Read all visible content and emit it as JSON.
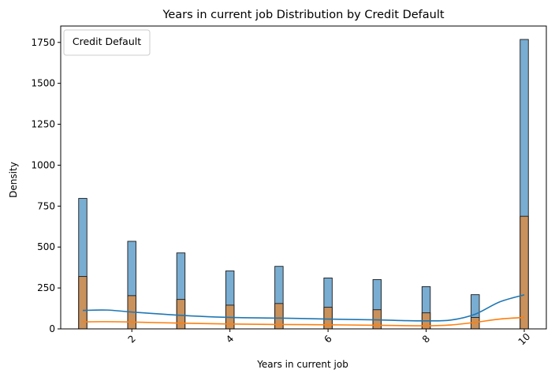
{
  "chart_data": {
    "type": "bar",
    "title": "Years in current job Distribution by Credit Default",
    "xlabel": "Years in current job",
    "ylabel": "Density",
    "legend": {
      "title": "Credit Default",
      "placement": "top-left",
      "entries": []
    },
    "xlim": [
      0.55,
      10.45
    ],
    "ylim": [
      0,
      1850
    ],
    "xticks": [
      2,
      4,
      6,
      8,
      10
    ],
    "xtick_rotation": 45,
    "yticks": [
      0,
      250,
      500,
      750,
      1000,
      1250,
      1500,
      1750
    ],
    "grid": false,
    "x": [
      1,
      2,
      3,
      4,
      5,
      6,
      7,
      8,
      9,
      10
    ],
    "series": [
      {
        "color": "#1f77b4",
        "values": [
          797,
          535,
          464,
          354,
          382,
          311,
          301,
          258,
          209,
          1768
        ]
      },
      {
        "color": "#ff7f0e",
        "values": [
          320,
          203,
          180,
          145,
          155,
          132,
          117,
          98,
          70,
          688
        ]
      }
    ],
    "kde": [
      {
        "color": "#1f77b4",
        "x": [
          1,
          1.5,
          2,
          3,
          4,
          5,
          6,
          7,
          7.5,
          8,
          8.5,
          9,
          9.5,
          10
        ],
        "y": [
          113,
          115,
          103,
          83,
          70,
          66,
          60,
          55,
          51,
          49,
          54,
          90,
          165,
          208
        ]
      },
      {
        "color": "#ff7f0e",
        "x": [
          1,
          1.5,
          2,
          3,
          4,
          5,
          6,
          7,
          7.5,
          8,
          8.5,
          9,
          9.5,
          10
        ],
        "y": [
          43,
          44,
          42,
          35,
          30,
          27,
          25,
          22,
          20,
          19,
          24,
          40,
          60,
          70
        ]
      }
    ]
  }
}
